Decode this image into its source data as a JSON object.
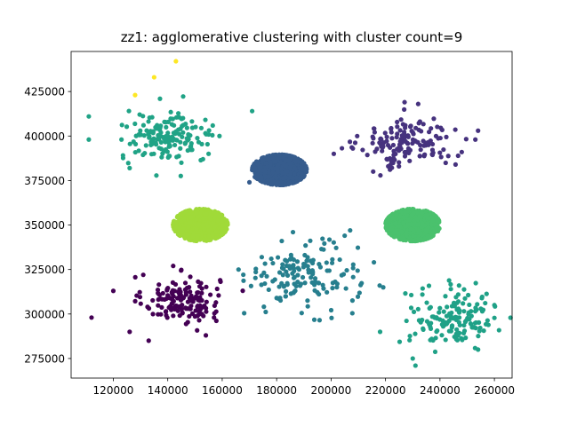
{
  "chart_data": {
    "type": "scatter",
    "title": "zz1: agglomerative clustering with cluster count=9",
    "xlabel": "",
    "ylabel": "",
    "xlim": [
      104500,
      266500
    ],
    "ylim": [
      264000,
      447500
    ],
    "x_ticks": [
      120000,
      140000,
      160000,
      180000,
      200000,
      220000,
      240000,
      260000
    ],
    "x_tick_labels": [
      "120000",
      "140000",
      "160000",
      "180000",
      "200000",
      "220000",
      "240000",
      "260000"
    ],
    "y_ticks": [
      275000,
      300000,
      325000,
      350000,
      375000,
      400000,
      425000
    ],
    "y_tick_labels": [
      "275000",
      "300000",
      "325000",
      "350000",
      "375000",
      "400000",
      "425000"
    ],
    "grid": false,
    "legend": "none",
    "series": [
      {
        "color": "#440154",
        "shape": "diffuse",
        "n": 150,
        "cx": 145000,
        "cy": 308000,
        "sx": 7000,
        "sy": 6500,
        "points": [
          [
            112000,
            298000
          ],
          [
            126000,
            290000
          ],
          [
            133000,
            285000
          ],
          [
            120000,
            313000
          ],
          [
            157000,
            298000
          ],
          [
            131000,
            322000
          ],
          [
            154000,
            288000
          ],
          [
            142000,
            327000
          ]
        ]
      },
      {
        "color": "#46327e",
        "shape": "diffuse",
        "n": 150,
        "cx": 228000,
        "cy": 396000,
        "sx": 8500,
        "sy": 7000,
        "points": [
          [
            254000,
            403000
          ],
          [
            253000,
            398000
          ],
          [
            248000,
            391000
          ],
          [
            208000,
            393000
          ],
          [
            201000,
            390000
          ],
          [
            221000,
            383000
          ],
          [
            232000,
            418000
          ],
          [
            227000,
            419000
          ]
        ]
      },
      {
        "color": "#365c8d",
        "shape": "dense",
        "n": 900,
        "cx": 181000,
        "cy": 381000,
        "rx": 10000,
        "ry": 8500,
        "points": [
          [
            170000,
            374000
          ],
          [
            172000,
            377000
          ]
        ]
      },
      {
        "color": "#277f8e",
        "shape": "diffuse",
        "n": 150,
        "cx": 190000,
        "cy": 321000,
        "sx": 10000,
        "sy": 9000,
        "points": [
          [
            166000,
            325000
          ],
          [
            207000,
            347000
          ],
          [
            205000,
            344000
          ],
          [
            186000,
            346000
          ],
          [
            180000,
            309000
          ]
        ]
      },
      {
        "color": "#1fa187",
        "shape": "diffuse",
        "n": 150,
        "cx": 245000,
        "cy": 298000,
        "sx": 8000,
        "sy": 8000,
        "points": [
          [
            260000,
            305000
          ],
          [
            230000,
            275000
          ],
          [
            231000,
            271000
          ],
          [
            254000,
            280000
          ],
          [
            218000,
            290000
          ],
          [
            247000,
            316000
          ]
        ]
      },
      {
        "color": "#20a386",
        "shape": "diffuse",
        "n": 150,
        "cx": 140000,
        "cy": 399000,
        "sx": 8500,
        "sy": 7000,
        "points": [
          [
            111000,
            411000
          ],
          [
            111000,
            398000
          ],
          [
            123000,
            398000
          ],
          [
            126000,
            382000
          ],
          [
            171000,
            414000
          ],
          [
            159000,
            400000
          ],
          [
            155000,
            390000
          ],
          [
            145000,
            385000
          ]
        ]
      },
      {
        "color": "#4ac16d",
        "shape": "dense",
        "n": 900,
        "cx": 230000,
        "cy": 350000,
        "rx": 10000,
        "ry": 9000,
        "points": []
      },
      {
        "color": "#a0da39",
        "shape": "dense",
        "n": 900,
        "cx": 152000,
        "cy": 350000,
        "rx": 10000,
        "ry": 9000,
        "points": []
      },
      {
        "color": "#fde725",
        "shape": "diffuse",
        "n": 0,
        "cx": 0,
        "cy": 0,
        "sx": 0,
        "sy": 0,
        "points": [
          [
            128000,
            423000
          ],
          [
            135000,
            433000
          ],
          [
            143000,
            442000
          ]
        ]
      }
    ]
  }
}
